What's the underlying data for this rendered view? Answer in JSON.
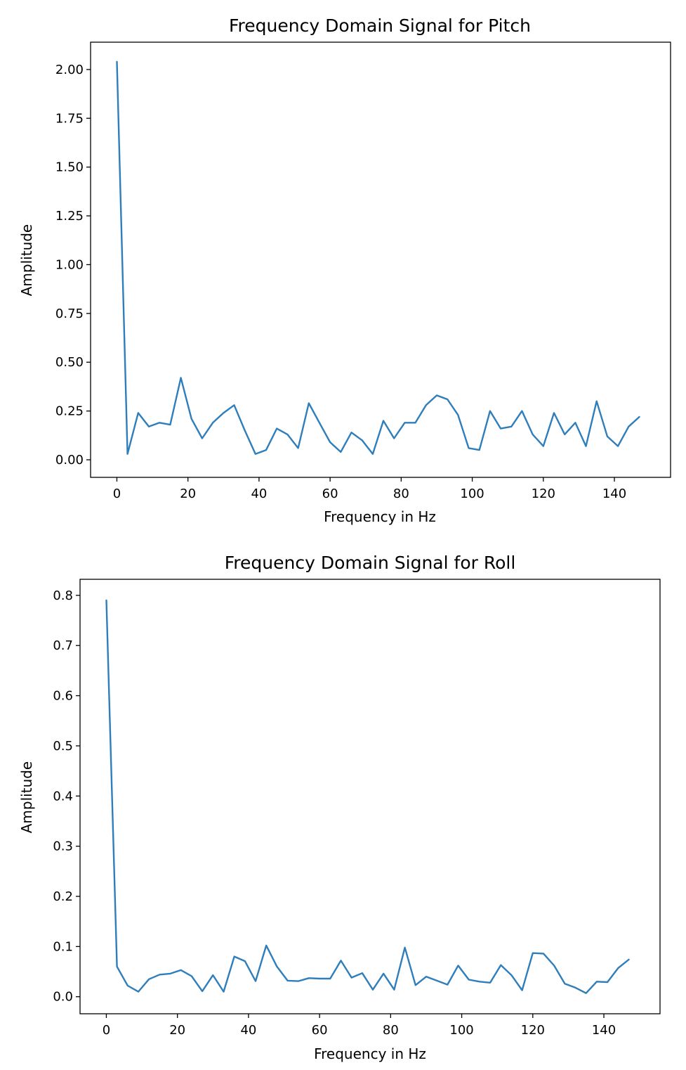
{
  "chart_data": [
    {
      "type": "line",
      "title": "Frequency Domain Signal for Pitch",
      "xlabel": "Frequency in Hz",
      "ylabel": "Amplitude",
      "xlim": [
        -7.4,
        155.8
      ],
      "ylim": [
        -0.09,
        2.14
      ],
      "xticks": [
        0,
        20,
        40,
        60,
        80,
        100,
        120,
        140
      ],
      "xtick_labels": [
        "0",
        "20",
        "40",
        "60",
        "80",
        "100",
        "120",
        "140"
      ],
      "yticks": [
        0.0,
        0.25,
        0.5,
        0.75,
        1.0,
        1.25,
        1.5,
        1.75,
        2.0
      ],
      "ytick_labels": [
        "0.00",
        "0.25",
        "0.50",
        "0.75",
        "1.00",
        "1.25",
        "1.50",
        "1.75",
        "2.00"
      ],
      "grid": false,
      "series": [
        {
          "color": "#2f7ebc",
          "x": [
            0,
            3,
            6,
            9,
            12,
            15,
            18,
            21,
            24,
            27,
            30,
            33,
            36,
            39,
            42,
            45,
            48,
            51,
            54,
            57,
            60,
            63,
            66,
            69,
            72,
            75,
            78,
            81,
            84,
            87,
            90,
            93,
            96,
            99,
            102,
            105,
            108,
            111,
            114,
            117,
            120,
            123,
            126,
            129,
            132,
            135,
            138,
            141,
            144,
            147
          ],
          "y": [
            2.04,
            0.03,
            0.24,
            0.17,
            0.19,
            0.18,
            0.42,
            0.21,
            0.11,
            0.19,
            0.24,
            0.28,
            0.15,
            0.03,
            0.05,
            0.16,
            0.13,
            0.06,
            0.29,
            0.19,
            0.09,
            0.04,
            0.14,
            0.1,
            0.03,
            0.2,
            0.11,
            0.19,
            0.19,
            0.28,
            0.33,
            0.31,
            0.23,
            0.06,
            0.05,
            0.25,
            0.16,
            0.17,
            0.25,
            0.13,
            0.07,
            0.24,
            0.13,
            0.19,
            0.07,
            0.3,
            0.12,
            0.07,
            0.17,
            0.22
          ]
        }
      ]
    },
    {
      "type": "line",
      "title": "Frequency Domain Signal for Roll",
      "xlabel": "Frequency in Hz",
      "ylabel": "Amplitude",
      "xlim": [
        -7.4,
        155.8
      ],
      "ylim": [
        -0.034,
        0.832
      ],
      "xticks": [
        0,
        20,
        40,
        60,
        80,
        100,
        120,
        140
      ],
      "xtick_labels": [
        "0",
        "20",
        "40",
        "60",
        "80",
        "100",
        "120",
        "140"
      ],
      "yticks": [
        0.0,
        0.1,
        0.2,
        0.3,
        0.4,
        0.5,
        0.6,
        0.7,
        0.8
      ],
      "ytick_labels": [
        "0.0",
        "0.1",
        "0.2",
        "0.3",
        "0.4",
        "0.5",
        "0.6",
        "0.7",
        "0.8"
      ],
      "grid": false,
      "series": [
        {
          "color": "#2f7ebc",
          "x": [
            0,
            3,
            6,
            9,
            12,
            15,
            18,
            21,
            24,
            27,
            30,
            33,
            36,
            39,
            42,
            45,
            48,
            51,
            54,
            57,
            60,
            63,
            66,
            69,
            72,
            75,
            78,
            81,
            84,
            87,
            90,
            93,
            96,
            99,
            102,
            105,
            108,
            111,
            114,
            117,
            120,
            123,
            126,
            129,
            132,
            135,
            138,
            141,
            144,
            147
          ],
          "y": [
            0.79,
            0.06,
            0.022,
            0.01,
            0.035,
            0.044,
            0.046,
            0.053,
            0.041,
            0.011,
            0.043,
            0.01,
            0.08,
            0.071,
            0.031,
            0.102,
            0.06,
            0.032,
            0.031,
            0.037,
            0.036,
            0.036,
            0.072,
            0.038,
            0.047,
            0.014,
            0.046,
            0.014,
            0.098,
            0.023,
            0.04,
            0.032,
            0.024,
            0.062,
            0.034,
            0.03,
            0.028,
            0.063,
            0.043,
            0.013,
            0.087,
            0.086,
            0.062,
            0.026,
            0.018,
            0.007,
            0.03,
            0.029,
            0.057,
            0.074
          ]
        }
      ]
    }
  ]
}
